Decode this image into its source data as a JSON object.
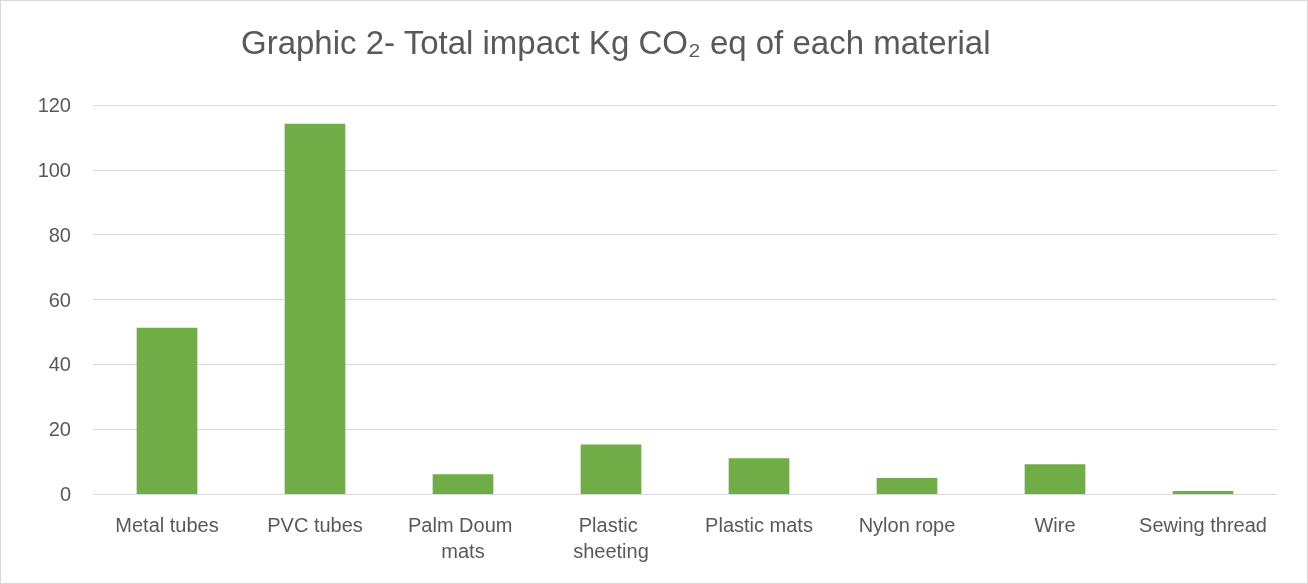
{
  "chart_data": {
    "type": "bar",
    "title": "Graphic 2- Total impact Kg CO₂ eq of each material",
    "categories": [
      "Metal tubes",
      "PVC tubes",
      "Palm Doum mats",
      "Plastic sheeting",
      "Plastic mats",
      "Nylon rope",
      "Wire",
      "Sewing thread"
    ],
    "values": [
      51.3,
      114.2,
      6.1,
      15.3,
      11.0,
      4.9,
      9.2,
      0.9
    ],
    "color": "#70ad47",
    "ylim": [
      0,
      120
    ],
    "yticks": [
      0,
      20,
      40,
      60,
      80,
      100,
      120
    ],
    "grid": "y"
  }
}
